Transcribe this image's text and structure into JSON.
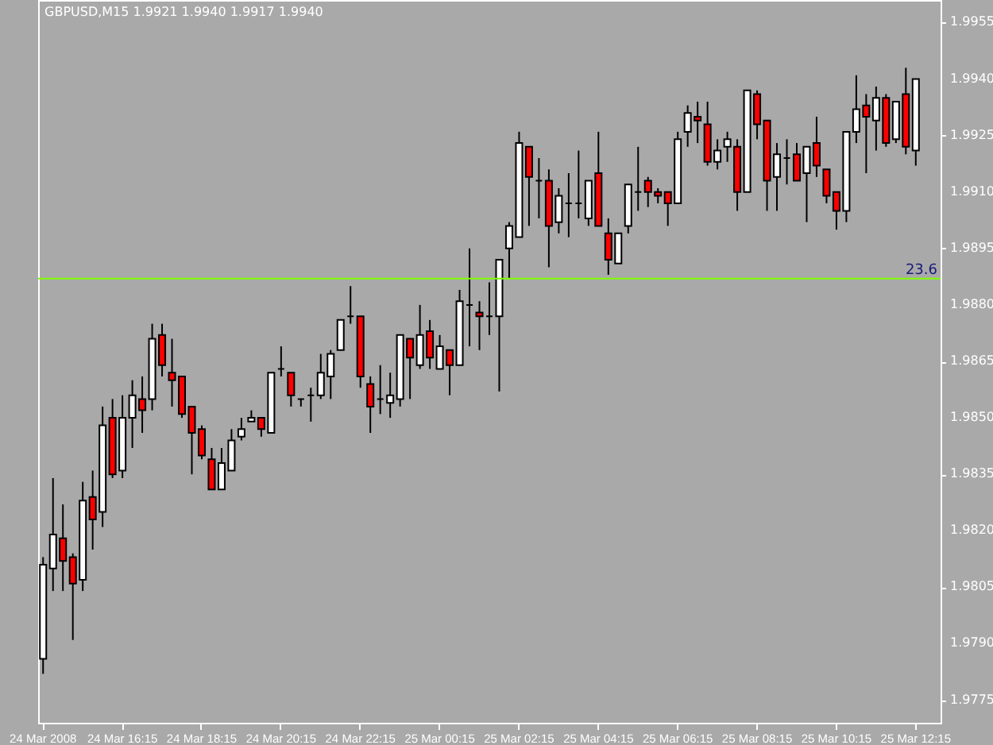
{
  "chart_data": {
    "type": "candlestick",
    "title": "GBPUSD,M15 1.9921 1.9940 1.9917 1.9940",
    "categories": [
      "24 Mar 2008",
      null,
      null,
      null,
      null,
      null,
      null,
      null,
      "24 Mar 16:15",
      null,
      null,
      null,
      null,
      null,
      null,
      null,
      "24 Mar 18:15",
      null,
      null,
      null,
      null,
      null,
      null,
      null,
      "24 Mar 20:15",
      null,
      null,
      null,
      null,
      null,
      null,
      null,
      "24 Mar 22:15",
      null,
      null,
      null,
      null,
      null,
      null,
      null,
      "25 Mar 00:15",
      null,
      null,
      null,
      null,
      null,
      null,
      null,
      "25 Mar 02:15",
      null,
      null,
      null,
      null,
      null,
      null,
      null,
      "25 Mar 04:15",
      null,
      null,
      null,
      null,
      null,
      null,
      null,
      "25 Mar 06:15",
      null,
      null,
      null,
      null,
      null,
      null,
      null,
      "25 Mar 08:15",
      null,
      null,
      null,
      null,
      null,
      null,
      null,
      "25 Mar 10:15",
      null,
      null,
      null,
      null,
      null,
      null,
      null,
      "25 Mar 12:15"
    ],
    "ohlc": [
      [
        1.9786,
        1.9813,
        1.9782,
        1.9811
      ],
      [
        1.981,
        1.9834,
        1.9804,
        1.9819
      ],
      [
        1.9818,
        1.9827,
        1.9804,
        1.9812
      ],
      [
        1.9813,
        1.9814,
        1.9791,
        1.9806
      ],
      [
        1.9807,
        1.9833,
        1.9804,
        1.9828
      ],
      [
        1.9829,
        1.9836,
        1.9815,
        1.9823
      ],
      [
        1.9825,
        1.9853,
        1.9821,
        1.9848
      ],
      [
        1.985,
        1.9855,
        1.9834,
        1.9835
      ],
      [
        1.9836,
        1.9856,
        1.9834,
        1.985
      ],
      [
        1.985,
        1.986,
        1.9842,
        1.9856
      ],
      [
        1.9855,
        1.9861,
        1.9846,
        1.9852
      ],
      [
        1.9855,
        1.9875,
        1.9852,
        1.9871
      ],
      [
        1.9872,
        1.9875,
        1.9861,
        1.9864
      ],
      [
        1.9862,
        1.9871,
        1.9853,
        1.986
      ],
      [
        1.9861,
        1.9861,
        1.985,
        1.9851
      ],
      [
        1.9853,
        1.9853,
        1.9835,
        1.9846
      ],
      [
        1.9847,
        1.9848,
        1.9839,
        1.984
      ],
      [
        1.9839,
        1.9842,
        1.9831,
        1.9831
      ],
      [
        1.9831,
        1.9842,
        1.9831,
        1.9838
      ],
      [
        1.9836,
        1.9847,
        1.9836,
        1.9844
      ],
      [
        1.9845,
        1.985,
        1.9844,
        1.9847
      ],
      [
        1.9849,
        1.9852,
        1.9849,
        1.985
      ],
      [
        1.985,
        1.985,
        1.9845,
        1.9847
      ],
      [
        1.9846,
        1.9862,
        1.9846,
        1.9862
      ],
      [
        1.9863,
        1.9869,
        1.9861,
        1.9863
      ],
      [
        1.9862,
        1.9862,
        1.9853,
        1.9856
      ],
      [
        1.9855,
        1.9855,
        1.9853,
        1.9855
      ],
      [
        1.9856,
        1.9858,
        1.9849,
        1.9856
      ],
      [
        1.9856,
        1.9867,
        1.9855,
        1.9862
      ],
      [
        1.9861,
        1.9868,
        1.9855,
        1.9867
      ],
      [
        1.9868,
        1.9876,
        1.9868,
        1.9876
      ],
      [
        1.9877,
        1.9885,
        1.9875,
        1.9877
      ],
      [
        1.9877,
        1.9877,
        1.9858,
        1.9861
      ],
      [
        1.9859,
        1.9861,
        1.9846,
        1.9853
      ],
      [
        1.9855,
        1.9864,
        1.9851,
        1.9855
      ],
      [
        1.9854,
        1.9862,
        1.985,
        1.9856
      ],
      [
        1.9855,
        1.9872,
        1.9853,
        1.9872
      ],
      [
        1.9871,
        1.9871,
        1.9855,
        1.9866
      ],
      [
        1.9864,
        1.988,
        1.9863,
        1.9872
      ],
      [
        1.9873,
        1.9876,
        1.9863,
        1.9866
      ],
      [
        1.9863,
        1.9872,
        1.9863,
        1.9869
      ],
      [
        1.9868,
        1.9868,
        1.9856,
        1.9864
      ],
      [
        1.9864,
        1.9884,
        1.9864,
        1.9881
      ],
      [
        1.988,
        1.9895,
        1.9869,
        1.988
      ],
      [
        1.9878,
        1.9881,
        1.9868,
        1.9877
      ],
      [
        1.9877,
        1.9886,
        1.9872,
        1.9877
      ],
      [
        1.9877,
        1.9892,
        1.9857,
        1.9892
      ],
      [
        1.9895,
        1.9902,
        1.9887,
        1.9901
      ],
      [
        1.9898,
        1.9926,
        1.9898,
        1.9923
      ],
      [
        1.9922,
        1.9922,
        1.9901,
        1.9914
      ],
      [
        1.9913,
        1.9919,
        1.9903,
        1.9913
      ],
      [
        1.9913,
        1.9916,
        1.989,
        1.9901
      ],
      [
        1.9902,
        1.9911,
        1.9899,
        1.9909
      ],
      [
        1.9907,
        1.9915,
        1.9898,
        1.9907
      ],
      [
        1.9907,
        1.9921,
        1.9903,
        1.9907
      ],
      [
        1.9903,
        1.9913,
        1.9901,
        1.9913
      ],
      [
        1.9915,
        1.9926,
        1.9901,
        1.9901
      ],
      [
        1.9899,
        1.9903,
        1.9888,
        1.9892
      ],
      [
        1.9891,
        1.9899,
        1.9891,
        1.9899
      ],
      [
        1.9901,
        1.9912,
        1.9899,
        1.9912
      ],
      [
        1.991,
        1.9922,
        1.9905,
        1.991
      ],
      [
        1.9913,
        1.9914,
        1.9906,
        1.991
      ],
      [
        1.991,
        1.9911,
        1.9907,
        1.9909
      ],
      [
        1.991,
        1.991,
        1.9901,
        1.9907
      ],
      [
        1.9907,
        1.9926,
        1.9907,
        1.9924
      ],
      [
        1.9926,
        1.9933,
        1.9922,
        1.9931
      ],
      [
        1.993,
        1.9934,
        1.9923,
        1.9929
      ],
      [
        1.9928,
        1.9934,
        1.9917,
        1.9918
      ],
      [
        1.9918,
        1.9924,
        1.9916,
        1.9921
      ],
      [
        1.9922,
        1.9926,
        1.9918,
        1.9924
      ],
      [
        1.9922,
        1.9924,
        1.9905,
        1.991
      ],
      [
        1.991,
        1.9937,
        1.991,
        1.9937
      ],
      [
        1.9936,
        1.9937,
        1.9924,
        1.9928
      ],
      [
        1.9929,
        1.9929,
        1.9905,
        1.9913
      ],
      [
        1.9914,
        1.9923,
        1.9905,
        1.992
      ],
      [
        1.9919,
        1.9924,
        1.9912,
        1.9919
      ],
      [
        1.992,
        1.9923,
        1.9913,
        1.9913
      ],
      [
        1.9915,
        1.9922,
        1.9902,
        1.9922
      ],
      [
        1.9923,
        1.993,
        1.9914,
        1.9917
      ],
      [
        1.9916,
        1.9916,
        1.9907,
        1.9909
      ],
      [
        1.991,
        1.991,
        1.99,
        1.9905
      ],
      [
        1.9905,
        1.9926,
        1.9902,
        1.9926
      ],
      [
        1.9926,
        1.9941,
        1.9923,
        1.9932
      ],
      [
        1.9933,
        1.9936,
        1.9915,
        1.993
      ],
      [
        1.9929,
        1.9938,
        1.9921,
        1.9935
      ],
      [
        1.9935,
        1.9936,
        1.9922,
        1.9923
      ],
      [
        1.9924,
        1.9934,
        1.9923,
        1.9934
      ],
      [
        1.9936,
        1.9943,
        1.992,
        1.9922
      ],
      [
        1.9921,
        1.994,
        1.9917,
        1.994
      ]
    ],
    "colors": [
      "#ffffff",
      "#ffffff",
      "#ff0000",
      "#ff0000",
      "#ffffff",
      "#ff0000",
      "#ffffff",
      "#ff0000",
      "#ffffff",
      "#ffffff",
      "#ff0000",
      "#ffffff",
      "#ff0000",
      "#ff0000",
      "#ff0000",
      "#ff0000",
      "#ff0000",
      "#ff0000",
      "#ffffff",
      "#ffffff",
      "#ffffff",
      "#ffffff",
      "#ff0000",
      "#ffffff",
      "#000000",
      "#ff0000",
      "#000000",
      "#000000",
      "#ffffff",
      "#ffffff",
      "#ffffff",
      "#000000",
      "#ff0000",
      "#ff0000",
      "#000000",
      "#ffffff",
      "#ffffff",
      "#ff0000",
      "#ffffff",
      "#ff0000",
      "#ffffff",
      "#ff0000",
      "#ffffff",
      "#000000",
      "#ff0000",
      "#000000",
      "#ffffff",
      "#ffffff",
      "#ffffff",
      "#ff0000",
      "#000000",
      "#ff0000",
      "#ffffff",
      "#000000",
      "#000000",
      "#ffffff",
      "#ff0000",
      "#ff0000",
      "#ffffff",
      "#ffffff",
      "#000000",
      "#ff0000",
      "#ff0000",
      "#ff0000",
      "#ffffff",
      "#ffffff",
      "#ff0000",
      "#ff0000",
      "#ffffff",
      "#ffffff",
      "#ff0000",
      "#ffffff",
      "#ff0000",
      "#ff0000",
      "#ffffff",
      "#000000",
      "#ff0000",
      "#ffffff",
      "#ff0000",
      "#ff0000",
      "#ff0000",
      "#ffffff",
      "#ffffff",
      "#ff0000",
      "#ffffff",
      "#ff0000",
      "#ffffff",
      "#ff0000",
      "#ffffff"
    ],
    "ylim": [
      1.9769,
      1.9961
    ],
    "yticks": [
      1.9775,
      {
        "value": 1.979,
        "label": "1.9790"
      },
      1.9805,
      {
        "value": 1.982,
        "label": "1.9820"
      },
      1.9835,
      {
        "value": 1.985,
        "label": "1.9850"
      },
      1.9865,
      {
        "value": 1.988,
        "label": "1.9880"
      },
      1.9895,
      {
        "value": 1.991,
        "label": "1.9910"
      },
      1.9925,
      {
        "value": 1.994,
        "label": "1.9940"
      },
      1.9955
    ],
    "ref_lines": [
      {
        "axis": "y",
        "value": 1.9887,
        "color": "#80ff00"
      }
    ],
    "annotations": [
      {
        "text": "23.6",
        "y": 1.9887
      }
    ]
  }
}
